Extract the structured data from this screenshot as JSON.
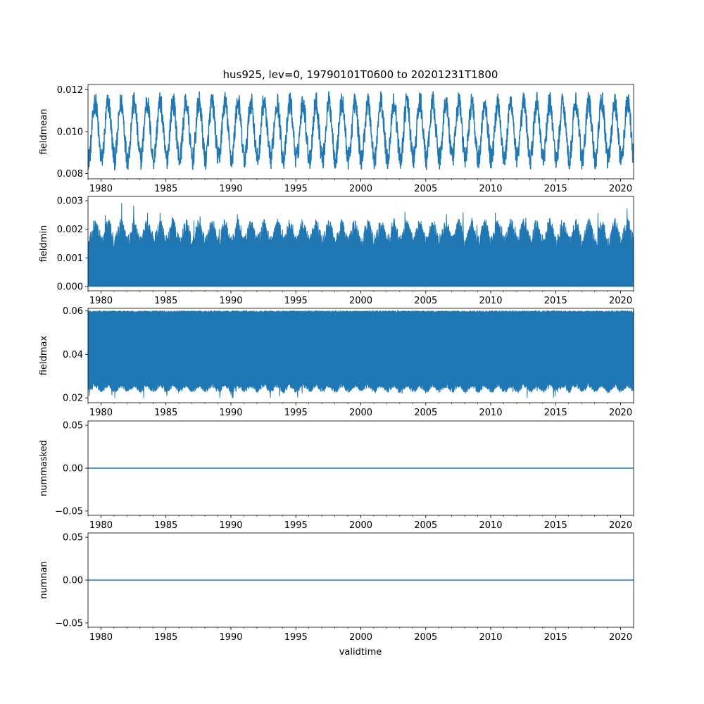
{
  "chart_data": {
    "type": "line",
    "title": "hus925, lev=0, 19790101T0600 to 20201231T1800",
    "xlabel": "validtime",
    "xlim": [
      1979.0,
      2021.0
    ],
    "x_ticks": [
      "1980",
      "1985",
      "1990",
      "1995",
      "2000",
      "2005",
      "2010",
      "2015",
      "2020"
    ],
    "color": "#1f77b4",
    "panels": [
      {
        "ylabel": "fieldmean",
        "ylim": [
          0.00775,
          0.01225
        ],
        "y_ticks": [
          "0.008",
          "0.010",
          "0.012"
        ],
        "series": [
          {
            "kind": "seasonal",
            "annual_min": 0.0087,
            "annual_max": 0.0114,
            "lowest": 0.008,
            "highest": 0.0121
          }
        ]
      },
      {
        "ylabel": "fieldmin",
        "ylim": [
          -0.00015,
          0.00315
        ],
        "y_ticks": [
          "0.000",
          "0.001",
          "0.002",
          "0.003"
        ],
        "series": [
          {
            "kind": "band",
            "lower": 0.0,
            "upper_typical": 0.0022,
            "highest": 0.003
          }
        ]
      },
      {
        "ylabel": "fieldmax",
        "ylim": [
          0.0178,
          0.0612
        ],
        "y_ticks": [
          "0.02",
          "0.04",
          "0.06"
        ],
        "series": [
          {
            "kind": "band",
            "upper": 0.06,
            "lower_typical": 0.025,
            "lowest": 0.02
          }
        ]
      },
      {
        "ylabel": "nummasked",
        "ylim": [
          -0.055,
          0.055
        ],
        "y_ticks": [
          "0.05",
          "0.00",
          "−0.05"
        ],
        "series": [
          {
            "kind": "constant",
            "value": 0.0
          }
        ]
      },
      {
        "ylabel": "numnan",
        "ylim": [
          -0.055,
          0.055
        ],
        "y_ticks": [
          "0.05",
          "0.00",
          "−0.05"
        ],
        "series": [
          {
            "kind": "constant",
            "value": 0.0
          }
        ]
      }
    ]
  }
}
